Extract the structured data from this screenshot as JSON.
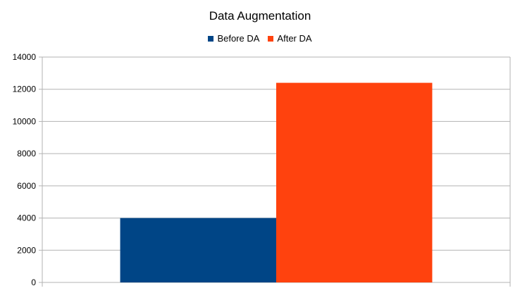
{
  "chart_data": {
    "type": "bar",
    "title": "Data Augmentation",
    "xlabel": "",
    "ylabel": "",
    "categories": [
      ""
    ],
    "series": [
      {
        "name": "Before DA",
        "values": [
          4000
        ],
        "color": "#004586"
      },
      {
        "name": "After DA",
        "values": [
          12400
        ],
        "color": "#ff420e"
      }
    ],
    "ylim": [
      0,
      14000
    ],
    "yticks": [
      0,
      2000,
      4000,
      6000,
      8000,
      10000,
      12000,
      14000
    ],
    "grid": true,
    "legend_position": "top"
  }
}
